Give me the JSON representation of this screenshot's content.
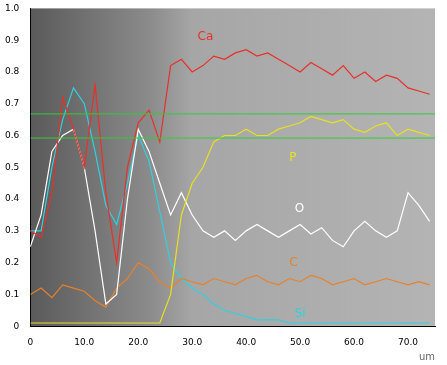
{
  "chart_data": {
    "type": "line",
    "x_label": "um",
    "x": [
      0,
      2,
      4,
      6,
      8,
      10,
      12,
      14,
      16,
      18,
      20,
      22,
      24,
      26,
      28,
      30,
      32,
      34,
      36,
      38,
      40,
      42,
      44,
      46,
      48,
      50,
      52,
      54,
      56,
      58,
      60,
      62,
      64,
      66,
      68,
      70,
      72,
      74
    ],
    "xlim": [
      0,
      75
    ],
    "xticks": [
      0,
      {
        "value": 10,
        "label": "10.0"
      },
      {
        "value": 20,
        "label": "20.0"
      },
      {
        "value": 30,
        "label": "30.0"
      },
      {
        "value": 40,
        "label": "40.0"
      },
      {
        "value": 50,
        "label": "50.0"
      },
      {
        "value": 60,
        "label": "60.0"
      },
      {
        "value": 70,
        "label": "70.0"
      }
    ],
    "ylim": [
      0,
      1
    ],
    "yticks": [
      0,
      0.1,
      0.2,
      0.3,
      0.4,
      0.5,
      0.6,
      0.7,
      0.8,
      0.9,
      {
        "value": 1,
        "label": "1.0"
      }
    ],
    "grid": false,
    "reference_lines": [
      0.668,
      0.592
    ],
    "series": [
      {
        "name": "Ca",
        "color": "#e8302a",
        "label_xy": [
          31,
          0.91
        ],
        "values": [
          0.3,
          0.28,
          0.42,
          0.72,
          0.62,
          0.5,
          0.76,
          0.42,
          0.2,
          0.5,
          0.64,
          0.68,
          0.58,
          0.82,
          0.84,
          0.8,
          0.82,
          0.85,
          0.84,
          0.86,
          0.87,
          0.85,
          0.86,
          0.84,
          0.82,
          0.8,
          0.83,
          0.81,
          0.79,
          0.82,
          0.78,
          0.8,
          0.77,
          0.79,
          0.78,
          0.75,
          0.74,
          0.73
        ]
      },
      {
        "name": "P",
        "color": "#e8e020",
        "label_xy": [
          48,
          0.53
        ],
        "values": [
          0.01,
          0.01,
          0.01,
          0.01,
          0.01,
          0.01,
          0.01,
          0.01,
          0.01,
          0.01,
          0.01,
          0.01,
          0.01,
          0.1,
          0.35,
          0.45,
          0.5,
          0.58,
          0.6,
          0.6,
          0.62,
          0.6,
          0.6,
          0.62,
          0.63,
          0.64,
          0.66,
          0.65,
          0.64,
          0.65,
          0.62,
          0.61,
          0.63,
          0.64,
          0.6,
          0.62,
          0.61,
          0.6
        ]
      },
      {
        "name": "O",
        "color": "#ffffff",
        "label_xy": [
          49,
          0.37
        ],
        "values": [
          0.25,
          0.35,
          0.55,
          0.6,
          0.62,
          0.5,
          0.3,
          0.07,
          0.1,
          0.4,
          0.62,
          0.55,
          0.45,
          0.35,
          0.42,
          0.35,
          0.3,
          0.28,
          0.3,
          0.27,
          0.3,
          0.32,
          0.3,
          0.28,
          0.3,
          0.32,
          0.29,
          0.31,
          0.27,
          0.25,
          0.3,
          0.33,
          0.3,
          0.28,
          0.3,
          0.42,
          0.38,
          0.33
        ]
      },
      {
        "name": "C",
        "color": "#e8802a",
        "label_xy": [
          48,
          0.2
        ],
        "values": [
          0.1,
          0.12,
          0.09,
          0.13,
          0.12,
          0.11,
          0.08,
          0.06,
          0.12,
          0.15,
          0.2,
          0.18,
          0.14,
          0.12,
          0.15,
          0.14,
          0.13,
          0.15,
          0.14,
          0.13,
          0.15,
          0.16,
          0.14,
          0.13,
          0.15,
          0.14,
          0.16,
          0.15,
          0.13,
          0.14,
          0.15,
          0.13,
          0.14,
          0.15,
          0.14,
          0.13,
          0.14,
          0.13
        ]
      },
      {
        "name": "Si",
        "color": "#30d0e0",
        "label_xy": [
          49,
          0.04
        ],
        "values": [
          0.3,
          0.3,
          0.5,
          0.65,
          0.75,
          0.7,
          0.55,
          0.38,
          0.32,
          0.45,
          0.6,
          0.52,
          0.36,
          0.2,
          0.15,
          0.12,
          0.1,
          0.07,
          0.05,
          0.04,
          0.03,
          0.02,
          0.02,
          0.02,
          0.01,
          0.01,
          0.01,
          0.01,
          0.01,
          0.01,
          0.01,
          0.01,
          0.01,
          0.01,
          0.01,
          0.01,
          0.01,
          0.01
        ]
      }
    ]
  }
}
